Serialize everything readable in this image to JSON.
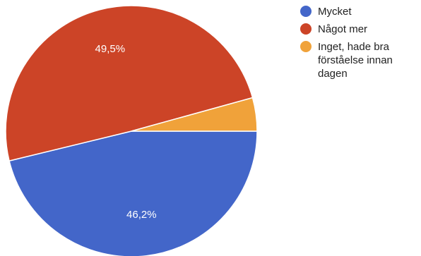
{
  "chart_data": {
    "type": "pie",
    "slices": [
      {
        "label": "Mycket",
        "value": 46.2,
        "value_label": "46,2%",
        "color": "#4366c9"
      },
      {
        "label": "Något mer",
        "value": 49.5,
        "value_label": "49,5%",
        "color": "#cc4427"
      },
      {
        "label": "Inget, hade bra förståelse innan dagen",
        "value": 4.3,
        "value_label": "",
        "color": "#f0a23a"
      }
    ],
    "start": "3 o'clock",
    "direction": "clockwise",
    "legend_position": "right"
  },
  "legend": {
    "items": [
      {
        "label": "Mycket",
        "color": "#4366c9"
      },
      {
        "label": "Något mer",
        "color": "#cc4427"
      },
      {
        "label": "Inget, hade bra förståelse innan dagen",
        "color": "#f0a23a"
      }
    ]
  }
}
